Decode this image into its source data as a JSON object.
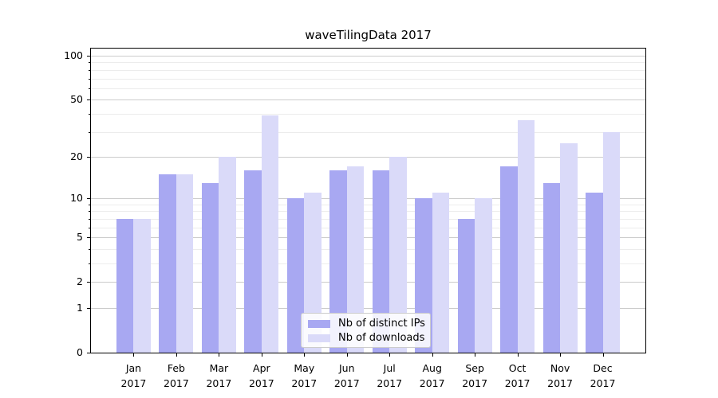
{
  "chart_data": {
    "type": "bar",
    "title": "waveTilingData 2017",
    "categories": [
      "Jan 2017",
      "Feb 2017",
      "Mar 2017",
      "Apr 2017",
      "May 2017",
      "Jun 2017",
      "Jul 2017",
      "Aug 2017",
      "Sep 2017",
      "Oct 2017",
      "Nov 2017",
      "Dec 2017"
    ],
    "x": {
      "months": [
        "Jan",
        "Feb",
        "Mar",
        "Apr",
        "May",
        "Jun",
        "Jul",
        "Aug",
        "Sep",
        "Oct",
        "Nov",
        "Dec"
      ],
      "year": "2017"
    },
    "series": [
      {
        "name": "Nb of distinct IPs",
        "color": "#a8a8f2",
        "values": [
          7,
          15,
          13,
          16,
          10,
          16,
          16,
          10,
          7,
          17,
          13,
          11
        ]
      },
      {
        "name": "Nb of downloads",
        "color": "#dadaf9",
        "values": [
          7,
          15,
          20,
          39,
          11,
          17,
          20,
          11,
          10,
          36,
          25,
          30
        ]
      }
    ],
    "yscale": "log1p",
    "ylabel": "",
    "xlabel": "",
    "ylim": [
      0,
      112
    ],
    "y_ticks": [
      0,
      1,
      2,
      5,
      10,
      20,
      50,
      100
    ],
    "y_minor_gridlines": [
      3,
      4,
      6,
      7,
      8,
      9,
      30,
      40,
      60,
      70,
      80,
      90
    ],
    "grid": {
      "enabled": true,
      "major_color": "#cccccc",
      "minor_color": "#ececec"
    },
    "legend_position": "lower-center",
    "axis_color": "#000000"
  }
}
